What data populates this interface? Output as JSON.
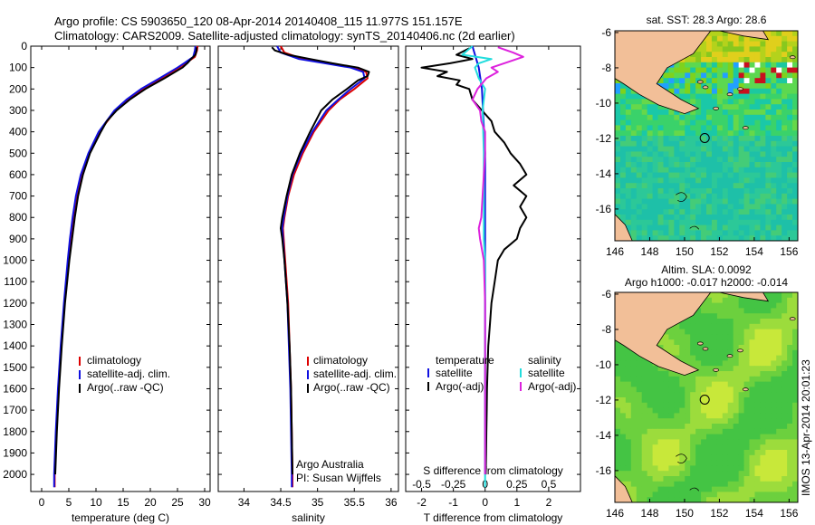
{
  "header": {
    "line1": "Argo profile: CS 5903650_120 08-Apr-2014 20140408_115 11.977S 151.157E",
    "line2": "Climatology: CARS2009. Satellite-adjusted climatology: synTS_20140406.nc (2d earlier)"
  },
  "colors": {
    "climatology": "#dd0000",
    "satellite": "#1010e0",
    "argo": "#000000",
    "sal_satellite": "#22dddd",
    "sal_argo": "#dd22dd",
    "land": "#f2bf98"
  },
  "depth_axis": {
    "ticks": [
      0,
      100,
      200,
      300,
      400,
      500,
      600,
      700,
      800,
      900,
      1000,
      1100,
      1200,
      1300,
      1400,
      1500,
      1600,
      1700,
      1800,
      1900,
      2000
    ],
    "ylim": [
      0,
      2080
    ]
  },
  "legend": {
    "climatology": "climatology",
    "satellite": "satellite-adj. clim.",
    "argo": "Argo(..raw -QC)"
  },
  "diff_legend": {
    "temperature": "temperature",
    "salinity": "salinity",
    "satellite": "satellite",
    "argo": "Argo(-adj)"
  },
  "credits": {
    "org": "Argo Australia",
    "pi": "PI: Susan Wijffels"
  },
  "stamp": "IMOS 13-Apr-2014 20:01:23",
  "chart_data": [
    {
      "type": "line",
      "name": "temperature",
      "xlabel": "temperature (deg C)",
      "ylabel": "depth",
      "xlim": [
        -2,
        31
      ],
      "xticks": [
        0,
        5,
        10,
        15,
        20,
        25,
        30
      ],
      "series": [
        {
          "name": "climatology",
          "depth": [
            0,
            20,
            50,
            80,
            100,
            150,
            200,
            250,
            300,
            400,
            500,
            600,
            700,
            800,
            900,
            1000,
            1200,
            1400,
            1600,
            1800,
            2000,
            2060
          ],
          "values": [
            28.7,
            28.6,
            28.2,
            26.5,
            25.3,
            22,
            18.6,
            15.8,
            13.6,
            10.6,
            8.7,
            7.3,
            6.4,
            5.8,
            5.3,
            4.9,
            4.2,
            3.6,
            3.1,
            2.7,
            2.4,
            2.4
          ]
        },
        {
          "name": "satellite-adj. clim.",
          "depth": [
            0,
            20,
            50,
            80,
            100,
            150,
            200,
            250,
            300,
            400,
            500,
            600,
            700,
            800,
            900,
            1000,
            1200,
            1400,
            1600,
            1800,
            2000,
            2060
          ],
          "values": [
            28.3,
            28.2,
            27.9,
            26.2,
            25,
            21.7,
            18.3,
            15.6,
            13.4,
            10.5,
            8.6,
            7.2,
            6.3,
            5.7,
            5.2,
            4.8,
            4.1,
            3.5,
            3,
            2.6,
            2.3,
            2.3
          ]
        },
        {
          "name": "Argo(..raw -QC)",
          "depth": [
            5,
            20,
            40,
            60,
            80,
            100,
            150,
            200,
            250,
            300,
            350,
            400,
            500,
            600,
            700,
            800,
            900,
            1000,
            1200,
            1400,
            1600,
            1800,
            2000
          ],
          "values": [
            28.5,
            28.5,
            28.3,
            27.5,
            26.8,
            25.9,
            22.6,
            19.1,
            16.2,
            13.8,
            12,
            10.9,
            8.9,
            7.6,
            6.7,
            6.1,
            5.6,
            5.1,
            4.3,
            3.7,
            3.2,
            2.8,
            2.5
          ]
        }
      ]
    },
    {
      "type": "line",
      "name": "salinity",
      "xlabel": "salinity",
      "ylabel": "depth",
      "xlim": [
        33.65,
        36.1
      ],
      "xticks": [
        34,
        34.5,
        35,
        35.5,
        36
      ],
      "series": [
        {
          "name": "climatology",
          "depth": [
            0,
            30,
            60,
            80,
            100,
            120,
            150,
            200,
            250,
            300,
            400,
            500,
            600,
            700,
            800,
            850,
            900,
            1000,
            1200,
            1400,
            1600,
            1800,
            2000,
            2060
          ],
          "values": [
            34.5,
            34.55,
            34.8,
            35.15,
            35.5,
            35.66,
            35.68,
            35.5,
            35.3,
            35.15,
            34.95,
            34.8,
            34.68,
            34.6,
            34.55,
            34.53,
            34.54,
            34.56,
            34.6,
            34.62,
            34.64,
            34.65,
            34.66,
            34.66
          ]
        },
        {
          "name": "satellite-adj. clim.",
          "depth": [
            0,
            30,
            60,
            80,
            100,
            120,
            150,
            200,
            250,
            300,
            400,
            500,
            600,
            700,
            800,
            850,
            900,
            1000,
            1200,
            1400,
            1600,
            1800,
            2000,
            2060
          ],
          "values": [
            34.45,
            34.5,
            34.75,
            35.1,
            35.45,
            35.62,
            35.64,
            35.45,
            35.28,
            35.12,
            34.93,
            34.78,
            34.66,
            34.59,
            34.54,
            34.52,
            34.53,
            34.55,
            34.59,
            34.61,
            34.63,
            34.64,
            34.65,
            34.65
          ]
        },
        {
          "name": "Argo(..raw -QC)",
          "depth": [
            5,
            20,
            40,
            60,
            80,
            100,
            120,
            140,
            160,
            200,
            250,
            300,
            400,
            500,
            600,
            700,
            800,
            850,
            900,
            1000,
            1200,
            1400,
            1600,
            1800,
            2000
          ],
          "values": [
            34.38,
            34.42,
            34.6,
            34.9,
            35.2,
            35.55,
            35.7,
            35.68,
            35.55,
            35.4,
            35.2,
            35.05,
            34.9,
            34.76,
            34.65,
            34.58,
            34.52,
            34.5,
            34.52,
            34.55,
            34.59,
            34.62,
            34.64,
            34.65,
            34.66
          ]
        }
      ]
    },
    {
      "type": "line",
      "name": "difference",
      "xlabel_top": "S difference from climatology",
      "xlabel": "T difference from climatology",
      "xlim": [
        -2.5,
        3
      ],
      "xticks": [
        -2,
        -1,
        0,
        1,
        2
      ],
      "sticks": [
        -0.5,
        -0.25,
        0,
        0.25,
        0.5
      ],
      "series": [
        {
          "name": "T satellite",
          "depth": [
            0,
            50,
            100,
            200,
            500,
            2000
          ],
          "values": [
            -0.4,
            -0.3,
            -0.2,
            -0.1,
            0,
            0
          ]
        },
        {
          "name": "T Argo(-adj)",
          "depth": [
            10,
            40,
            60,
            80,
            100,
            120,
            140,
            160,
            180,
            200,
            250,
            300,
            350,
            400,
            450,
            500,
            550,
            600,
            650,
            700,
            750,
            800,
            850,
            900,
            950,
            1000,
            1100,
            1200,
            1300,
            1400,
            1500,
            1600,
            1700,
            1800,
            1900,
            2000
          ],
          "values": [
            -0.5,
            -0.9,
            -0.4,
            -1.1,
            -2,
            -1.2,
            -1.5,
            -0.8,
            -0.9,
            -0.5,
            -0.4,
            -0.1,
            0.2,
            0.3,
            0.6,
            0.8,
            1.1,
            1.3,
            0.9,
            1.3,
            1.1,
            1.3,
            1.1,
            1,
            0.6,
            0.4,
            0.3,
            0.2,
            0.15,
            0.1,
            0.08,
            0.06,
            0.05,
            0.04,
            0.03,
            0.02
          ]
        },
        {
          "name": "S satellite",
          "depth": [
            0,
            40,
            60,
            80,
            100,
            150,
            200,
            300,
            500,
            800,
            900,
            1000,
            1500,
            2000,
            2060
          ],
          "values": [
            -0.1,
            -0.18,
            0.05,
            -0.05,
            -0.08,
            -0.05,
            0,
            -0.02,
            -0.01,
            -0.01,
            -0.01,
            0,
            0,
            0,
            0
          ]
        },
        {
          "name": "S Argo(-adj)",
          "depth": [
            5,
            30,
            50,
            80,
            100,
            120,
            150,
            200,
            250,
            300,
            350,
            400,
            500,
            600,
            700,
            800,
            850,
            900,
            1000,
            1200,
            2000
          ],
          "values": [
            0.1,
            0.22,
            0.3,
            0.15,
            0.05,
            0.1,
            0.01,
            -0.06,
            -0.1,
            -0.04,
            -0.03,
            0,
            0,
            -0.01,
            -0.02,
            -0.03,
            -0.05,
            -0.04,
            -0.01,
            0,
            0
          ]
        }
      ]
    },
    {
      "type": "heatmap",
      "name": "sst_map",
      "title": "sat. SST: 28.3 Argo: 28.6",
      "xticks": [
        146,
        148,
        150,
        152,
        154,
        156
      ],
      "yticks": [
        -6,
        -8,
        -10,
        -12,
        -14,
        -16
      ],
      "xlim": [
        146,
        156.5
      ],
      "ylim": [
        -17.8,
        -5.9
      ],
      "argo_position": [
        151.157,
        -11.977
      ]
    },
    {
      "type": "heatmap",
      "name": "sla_map",
      "title1": "Altim. SLA: 0.0092",
      "title2": "Argo h1000: -0.017 h2000: -0.014",
      "xticks": [
        146,
        148,
        150,
        152,
        154,
        156
      ],
      "yticks": [
        -6,
        -8,
        -10,
        -12,
        -14,
        -16
      ],
      "xlim": [
        146,
        156.5
      ],
      "ylim": [
        -17.8,
        -5.9
      ],
      "argo_position": [
        151.157,
        -11.977
      ]
    }
  ]
}
